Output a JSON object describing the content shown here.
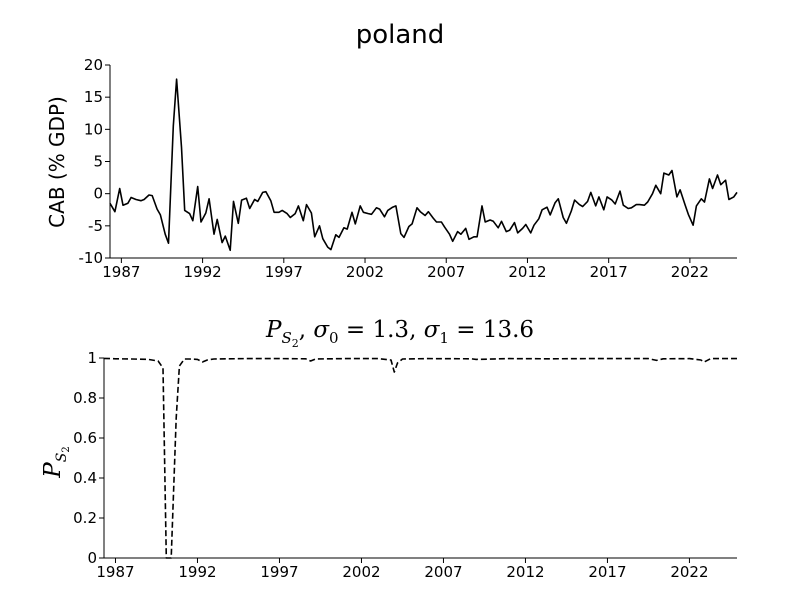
{
  "chart_data": [
    {
      "type": "line",
      "title": "poland",
      "xlabel": "",
      "ylabel": "CAB (% GDP)",
      "xlim": [
        1986.3,
        2024.9
      ],
      "ylim": [
        -10,
        20
      ],
      "yticks": [
        "-10",
        "-5",
        "0",
        "5",
        "10",
        "15",
        "20"
      ],
      "yticks_values": [
        -10,
        -5,
        0,
        5,
        10,
        15,
        20
      ],
      "xticks": [
        "1987",
        "1992",
        "1997",
        "2002",
        "2007",
        "2012",
        "2017",
        "2022"
      ],
      "xticks_values": [
        1987,
        1992,
        1997,
        2002,
        2007,
        2012,
        2017,
        2022
      ],
      "grid": false,
      "line_style": "solid",
      "color": "#000000",
      "series": [
        {
          "x": [
            1986.3,
            1986.6,
            1986.9,
            1987.1,
            1987.4,
            1987.6,
            1987.9,
            1988.2,
            1988.4,
            1988.7,
            1988.9,
            1989.2,
            1989.4,
            1989.7,
            1989.9,
            1990.2,
            1990.4,
            1990.7,
            1990.9,
            1991.2,
            1991.4,
            1991.7,
            1991.9,
            1992.2,
            1992.4,
            1992.7,
            1992.9,
            1993.2,
            1993.4,
            1993.7,
            1993.9,
            1994.2,
            1994.4,
            1994.7,
            1994.9,
            1995.2,
            1995.4,
            1995.7,
            1995.9,
            1996.2,
            1996.4,
            1996.7,
            1996.9,
            1997.2,
            1997.4,
            1997.7,
            1997.9,
            1998.2,
            1998.4,
            1998.7,
            1998.9,
            1999.2,
            1999.4,
            1999.7,
            1999.9,
            2000.2,
            2000.4,
            2000.7,
            2000.9,
            2001.2,
            2001.4,
            2001.7,
            2001.9,
            2002.2,
            2002.4,
            2002.7,
            2002.9,
            2003.2,
            2003.4,
            2003.7,
            2003.9,
            2004.2,
            2004.4,
            2004.7,
            2004.9,
            2005.2,
            2005.4,
            2005.7,
            2005.9,
            2006.2,
            2006.4,
            2006.7,
            2006.9,
            2007.2,
            2007.4,
            2007.7,
            2007.9,
            2008.2,
            2008.4,
            2008.7,
            2008.9,
            2009.2,
            2009.4,
            2009.7,
            2009.9,
            2010.2,
            2010.4,
            2010.7,
            2010.9,
            2011.2,
            2011.4,
            2011.7,
            2011.9,
            2012.2,
            2012.4,
            2012.7,
            2012.9,
            2013.2,
            2013.4,
            2013.7,
            2013.9,
            2014.2,
            2014.4,
            2014.7,
            2014.9,
            2015.2,
            2015.4,
            2015.7,
            2015.9,
            2016.2,
            2016.4,
            2016.7,
            2016.9,
            2017.2,
            2017.4,
            2017.7,
            2017.9,
            2018.2,
            2018.4,
            2018.7,
            2018.9,
            2019.2,
            2019.4,
            2019.7,
            2019.9,
            2020.2,
            2020.4,
            2020.7,
            2020.9,
            2021.2,
            2021.4,
            2021.7,
            2021.9,
            2022.2,
            2022.4,
            2022.7,
            2022.9,
            2023.2,
            2023.4,
            2023.7,
            2023.9,
            2024.2,
            2024.4,
            2024.7,
            2024.9
          ],
          "y": [
            -1.5,
            -2.8,
            0.8,
            -1.8,
            -1.5,
            -0.6,
            -0.9,
            -1.1,
            -0.9,
            -0.2,
            -0.3,
            -2.4,
            -3.3,
            -6.3,
            -7.7,
            10.5,
            17.8,
            7.2,
            -2.6,
            -3.1,
            -4.2,
            1.1,
            -4.4,
            -3.0,
            -0.8,
            -6.3,
            -4.0,
            -7.6,
            -6.6,
            -8.8,
            -1.2,
            -4.6,
            -1.0,
            -0.7,
            -2.3,
            -0.9,
            -1.2,
            0.2,
            0.3,
            -1.1,
            -2.9,
            -2.9,
            -2.6,
            -3.1,
            -3.7,
            -3.1,
            -1.9,
            -4.2,
            -1.7,
            -3.0,
            -6.7,
            -5.0,
            -7.0,
            -8.3,
            -8.7,
            -6.4,
            -6.8,
            -5.3,
            -5.5,
            -2.9,
            -4.7,
            -1.9,
            -2.9,
            -3.1,
            -3.2,
            -2.2,
            -2.4,
            -3.6,
            -2.6,
            -2.1,
            -1.9,
            -6.2,
            -6.8,
            -5.1,
            -4.7,
            -2.2,
            -2.8,
            -3.4,
            -2.8,
            -3.8,
            -4.4,
            -4.4,
            -5.2,
            -6.3,
            -7.4,
            -5.9,
            -6.3,
            -5.4,
            -7.1,
            -6.7,
            -6.7,
            -1.9,
            -4.4,
            -4.1,
            -4.3,
            -5.3,
            -4.3,
            -5.9,
            -5.7,
            -4.5,
            -6.1,
            -5.4,
            -4.8,
            -6.1,
            -4.9,
            -3.9,
            -2.5,
            -2.1,
            -3.3,
            -1.4,
            -0.8,
            -3.7,
            -4.6,
            -2.7,
            -1.0,
            -1.7,
            -2.0,
            -1.2,
            0.2,
            -1.9,
            -0.5,
            -2.5,
            -0.5,
            -1.0,
            -1.6,
            0.4,
            -1.8,
            -2.3,
            -2.2,
            -1.7,
            -1.7,
            -1.8,
            -1.3,
            0.0,
            1.3,
            0.0,
            3.2,
            2.9,
            3.6,
            -0.5,
            0.6,
            -1.7,
            -3.2,
            -4.9,
            -1.9,
            -0.8,
            -1.3,
            2.3,
            0.8,
            2.9,
            1.4,
            2.1,
            -0.9,
            -0.5,
            0.2
          ]
        }
      ]
    },
    {
      "type": "line",
      "title": "P_S2, σ0 = 1.3, σ1 = 13.6",
      "xlabel": "",
      "ylabel": "P_S2",
      "xlim": [
        1986.3,
        2024.9
      ],
      "ylim": [
        0,
        1
      ],
      "yticks": [
        "0",
        "0.2",
        "0.4",
        "0.6",
        "0.8",
        "1"
      ],
      "yticks_values": [
        0,
        0.2,
        0.4,
        0.6,
        0.8,
        1
      ],
      "xticks": [
        "1987",
        "1992",
        "1997",
        "2002",
        "2007",
        "2012",
        "2017",
        "2022"
      ],
      "xticks_values": [
        1987,
        1992,
        1997,
        2002,
        2007,
        2012,
        2017,
        2022
      ],
      "grid": false,
      "line_style": "dashed",
      "color": "#000000",
      "series": [
        {
          "x": [
            1986.3,
            1987.0,
            1988.0,
            1989.0,
            1989.6,
            1989.9,
            1990.1,
            1990.4,
            1990.7,
            1990.9,
            1991.2,
            1991.5,
            1992.0,
            1992.3,
            1992.6,
            1993.0,
            1995.0,
            1997.0,
            1998.6,
            1998.9,
            1999.2,
            2001.0,
            2003.0,
            2003.8,
            2004.0,
            2004.2,
            2004.5,
            2006.0,
            2008.7,
            2009.0,
            2011.0,
            2013.5,
            2016.0,
            2019.5,
            2020.0,
            2020.4,
            2022.0,
            2022.7,
            2022.9,
            2023.3,
            2024.9
          ],
          "y": [
            0.998,
            0.996,
            0.995,
            0.993,
            0.985,
            0.95,
            0.0,
            0.0,
            0.7,
            0.96,
            0.995,
            0.995,
            0.993,
            0.98,
            0.99,
            0.995,
            0.997,
            0.997,
            0.996,
            0.985,
            0.995,
            0.997,
            0.997,
            0.99,
            0.93,
            0.975,
            0.995,
            0.997,
            0.996,
            0.993,
            0.997,
            0.996,
            0.997,
            0.997,
            0.988,
            0.996,
            0.997,
            0.99,
            0.98,
            0.997,
            0.997
          ]
        }
      ]
    }
  ]
}
